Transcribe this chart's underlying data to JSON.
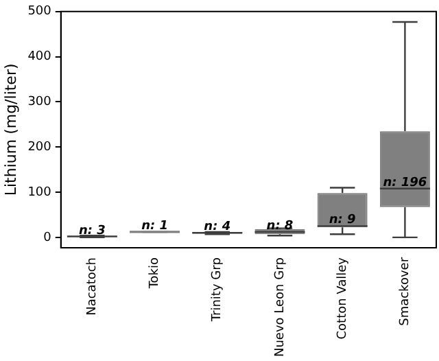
{
  "chart_data": {
    "type": "box",
    "ylabel": "Lithium (mg/liter)",
    "categories": [
      "Nacatoch",
      "Tokio",
      "Trinity Grp",
      "Nuevo Leon Grp",
      "Cotton Valley",
      "Smackover"
    ],
    "boxes": [
      {
        "low": 0,
        "q1": 0,
        "median": 2,
        "q3": 3,
        "high": 4
      },
      {
        "low": 12,
        "q1": 12,
        "median": 12,
        "q3": 12,
        "high": 12
      },
      {
        "low": 7,
        "q1": 8,
        "median": 10,
        "q3": 12,
        "high": 12
      },
      {
        "low": 4,
        "q1": 7,
        "median": 12,
        "q3": 18,
        "high": 20
      },
      {
        "low": 7,
        "q1": 22,
        "median": 25,
        "q3": 98,
        "high": 110
      },
      {
        "low": 0,
        "q1": 67,
        "median": 108,
        "q3": 235,
        "high": 477
      }
    ],
    "color": "#808080",
    "ylim": [
      -23,
      500
    ],
    "yticks": [
      0,
      100,
      200,
      300,
      400,
      500
    ],
    "grid": false,
    "legend": false,
    "annotations": [
      {
        "text": "n: 3",
        "x": "Nacatoch",
        "y": 2
      },
      {
        "text": "n: 1",
        "x": "Tokio",
        "y": 12
      },
      {
        "text": "n: 4",
        "x": "Trinity Grp",
        "y": 10
      },
      {
        "text": "n: 8",
        "x": "Nuevo Leon Grp",
        "y": 12
      },
      {
        "text": "n: 9",
        "x": "Cotton Valley",
        "y": 25
      },
      {
        "text": "n: 196",
        "x": "Smackover",
        "y": 108
      }
    ]
  }
}
